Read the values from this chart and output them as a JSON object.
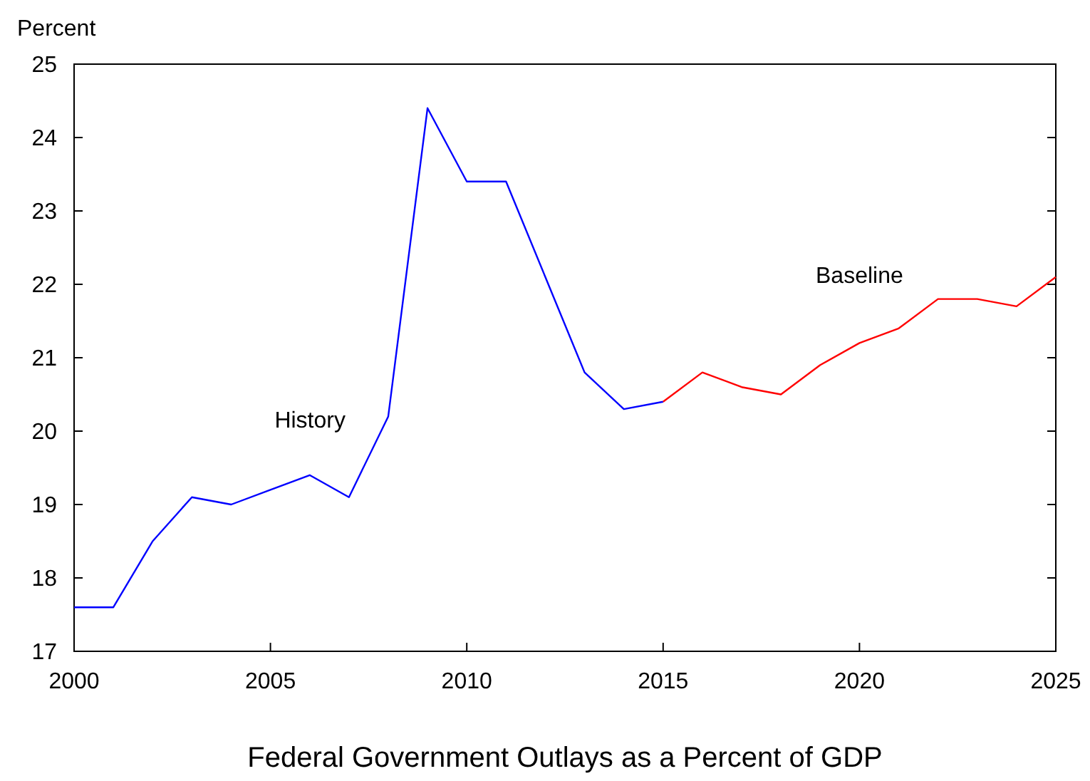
{
  "chart_data": {
    "type": "line",
    "title": "Federal Government Outlays as a Percent of GDP",
    "ylabel": "Percent",
    "xlim": [
      2000,
      2025
    ],
    "xticks": [
      2000,
      2005,
      2010,
      2015,
      2020,
      2025
    ],
    "ylim": [
      17,
      25
    ],
    "yticks": [
      17,
      18,
      19,
      20,
      21,
      22,
      23,
      24,
      25
    ],
    "grid": false,
    "legend": false,
    "series": [
      {
        "name": "History",
        "color": "#0000ff",
        "x": [
          2000,
          2001,
          2002,
          2003,
          2004,
          2005,
          2006,
          2007,
          2008,
          2009,
          2010,
          2011,
          2012,
          2013,
          2014,
          2015
        ],
        "values": [
          17.6,
          17.6,
          18.5,
          19.1,
          19.0,
          19.2,
          19.4,
          19.1,
          20.2,
          24.4,
          23.4,
          23.4,
          22.1,
          20.8,
          20.3,
          20.4
        ]
      },
      {
        "name": "Baseline",
        "color": "#ff0000",
        "x": [
          2015,
          2016,
          2017,
          2018,
          2019,
          2020,
          2021,
          2022,
          2023,
          2024,
          2025
        ],
        "values": [
          20.4,
          20.8,
          20.6,
          20.5,
          20.9,
          21.2,
          21.4,
          21.8,
          21.8,
          21.7,
          22.1
        ]
      }
    ]
  }
}
